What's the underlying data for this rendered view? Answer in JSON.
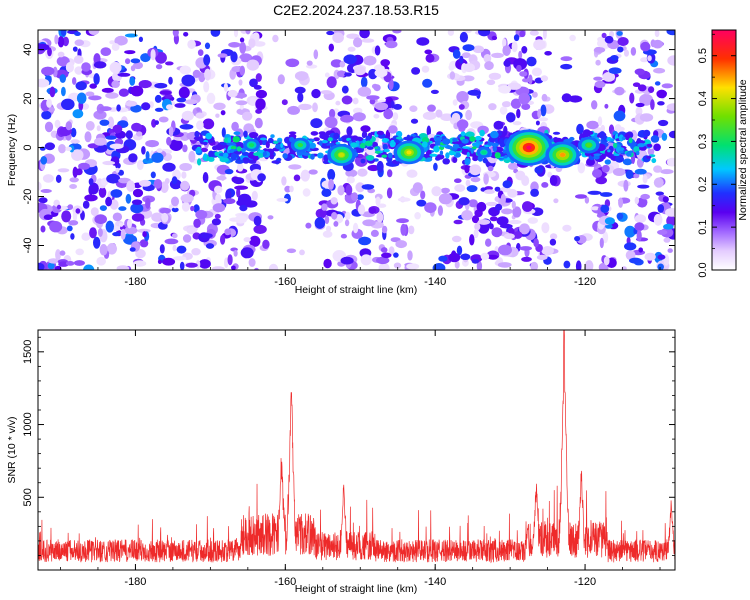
{
  "title": "C2E2.2024.237.18.53.R15",
  "chart_data": [
    {
      "type": "heatmap",
      "xlabel": "Height of straight line (km)",
      "ylabel": "Frequency (Hz)",
      "xlim": [
        -193,
        -108
      ],
      "ylim": [
        -50,
        48
      ],
      "xticks": [
        -180,
        -160,
        -140,
        -120
      ],
      "yticks": [
        40,
        20,
        0,
        -20,
        -40
      ],
      "colorbar": {
        "label": "Normalized spectral amplitude",
        "range": [
          0.0,
          0.56
        ],
        "ticks": [
          0.0,
          0.1,
          0.2,
          0.3,
          0.4,
          0.5
        ]
      },
      "signal_band": {
        "frequency": 0,
        "x_range": [
          -172,
          -110
        ],
        "peaks": [
          {
            "x": -164.5,
            "y": 1,
            "value": 0.3
          },
          {
            "x": -158,
            "y": 1,
            "value": 0.32
          },
          {
            "x": -152.5,
            "y": -3,
            "value": 0.4
          },
          {
            "x": -143.5,
            "y": -2,
            "value": 0.42
          },
          {
            "x": -133.5,
            "y": -2,
            "value": 0.28
          },
          {
            "x": -127.5,
            "y": 0,
            "value": 0.56
          },
          {
            "x": -123,
            "y": -3,
            "value": 0.45
          },
          {
            "x": -119.5,
            "y": 1,
            "value": 0.34
          }
        ]
      },
      "colors": {
        "low": "#ffffff",
        "mid_low": "#cfa6ff",
        "mid": "#6a00ff",
        "cyan": "#00e0ff",
        "green": "#40e000",
        "yellow": "#ffe000",
        "red": "#ff0000",
        "high": "#ff0080"
      }
    },
    {
      "type": "line",
      "xlabel": "Height of straight line (km)",
      "ylabel": "SNR (10 * v/v)",
      "xlim": [
        -193,
        -108
      ],
      "ylim": [
        0,
        1650
      ],
      "xticks": [
        -180,
        -160,
        -140,
        -120
      ],
      "yticks": [
        500,
        1000,
        1500
      ],
      "line_color": "#ee2a2a",
      "baseline": 150,
      "peaks": [
        {
          "x": -160.5,
          "y": 820
        },
        {
          "x": -159.2,
          "y": 1220
        },
        {
          "x": -152.2,
          "y": 590
        },
        {
          "x": -126.5,
          "y": 620
        },
        {
          "x": -122.8,
          "y": 1650
        },
        {
          "x": -120.5,
          "y": 700
        },
        {
          "x": -108.5,
          "y": 480
        }
      ]
    }
  ]
}
